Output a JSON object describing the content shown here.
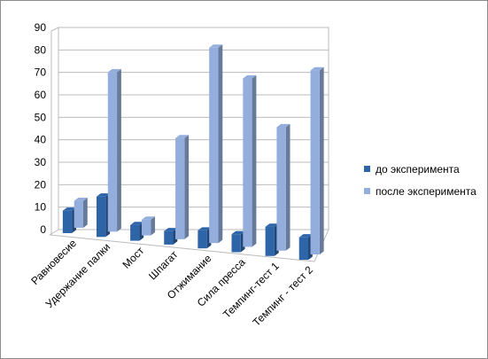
{
  "chart_data": {
    "type": "bar",
    "categories": [
      "Равновесие",
      "Удержание палки",
      "Мост",
      "Шпагат",
      "Отжимание",
      "Сила пресса",
      "Темпинг-тест 1",
      "Темпинг - тест 2"
    ],
    "series": [
      {
        "name": "до эксперимента",
        "color": "#2e64a8",
        "values": [
          10,
          18,
          7,
          6,
          8,
          8,
          13,
          10
        ]
      },
      {
        "name": "после эксперимента",
        "color": "#93aedc",
        "values": [
          12,
          71,
          7,
          45,
          87,
          75,
          55,
          82
        ]
      }
    ],
    "ylim": [
      0,
      90
    ],
    "yticks": [
      0,
      10,
      20,
      30,
      40,
      50,
      60,
      70,
      80,
      90
    ],
    "grid": true,
    "legend": "right"
  }
}
